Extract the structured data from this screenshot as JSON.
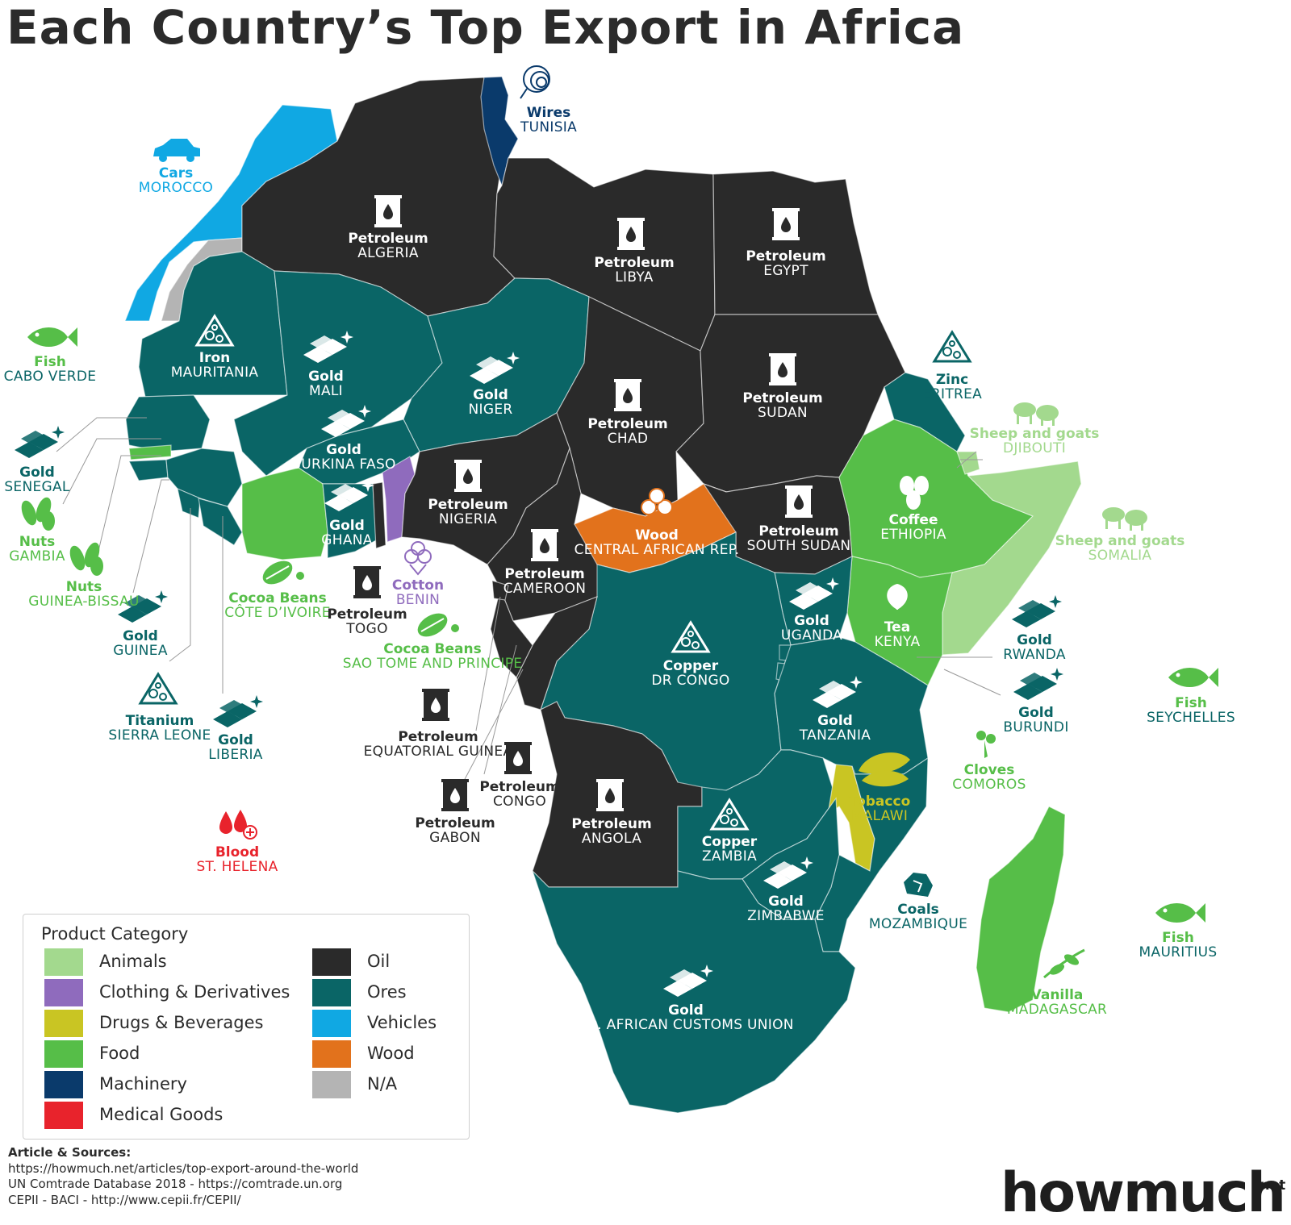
{
  "title": "Each Country’s Top Export in Africa",
  "colors": {
    "animals": "#a3d98e",
    "clothing": "#8f6bbd",
    "drugs": "#c9c523",
    "food": "#56be48",
    "machinery": "#0a3a6b",
    "medical": "#e8232c",
    "oil": "#2a2a2a",
    "ores": "#0a6566",
    "vehicles": "#10a8e3",
    "wood": "#e2721c",
    "na": "#b4b4b4"
  },
  "countries": [
    {
      "product": "Wires",
      "country": "TUNISIA",
      "category": "machinery",
      "icon": "wire-coil-icon"
    },
    {
      "product": "Cars",
      "country": "MOROCCO",
      "category": "vehicles",
      "icon": "car-icon"
    },
    {
      "product": "Petroleum",
      "country": "ALGERIA",
      "category": "oil",
      "icon": "oil-barrel-icon"
    },
    {
      "product": "Petroleum",
      "country": "LIBYA",
      "category": "oil",
      "icon": "oil-barrel-icon"
    },
    {
      "product": "Petroleum",
      "country": "EGYPT",
      "category": "oil",
      "icon": "oil-barrel-icon"
    },
    {
      "product": "Fish",
      "country": "CABO VERDE",
      "category": "food",
      "icon": "fish-icon"
    },
    {
      "product": "Iron",
      "country": "MAURITANIA",
      "category": "ores",
      "icon": "iron-ore-icon"
    },
    {
      "product": "Gold",
      "country": "MALI",
      "category": "ores",
      "icon": "gold-bars-icon"
    },
    {
      "product": "Gold",
      "country": "NIGER",
      "category": "ores",
      "icon": "gold-bars-icon"
    },
    {
      "product": "Petroleum",
      "country": "CHAD",
      "category": "oil",
      "icon": "oil-barrel-icon"
    },
    {
      "product": "Petroleum",
      "country": "SUDAN",
      "category": "oil",
      "icon": "oil-barrel-icon"
    },
    {
      "product": "Zinc",
      "country": "ERITREA",
      "category": "ores",
      "icon": "zinc-ore-icon"
    },
    {
      "product": "Sheep and goats",
      "country": "DJIBOUTI",
      "category": "animals",
      "icon": "sheep-goat-icon"
    },
    {
      "product": "Gold",
      "country": "SENEGAL",
      "category": "ores",
      "icon": "gold-bars-icon"
    },
    {
      "product": "Gold",
      "country": "BURKINA FASO",
      "category": "ores",
      "icon": "gold-bars-icon"
    },
    {
      "product": "Nuts",
      "country": "GAMBIA",
      "category": "food",
      "icon": "nuts-icon"
    },
    {
      "product": "Petroleum",
      "country": "NIGERIA",
      "category": "oil",
      "icon": "oil-barrel-icon"
    },
    {
      "product": "Gold",
      "country": "GHANA",
      "category": "ores",
      "icon": "gold-bars-icon"
    },
    {
      "product": "Wood",
      "country": "CENTRAL AFRICAN REP.",
      "category": "wood",
      "icon": "wood-logs-icon"
    },
    {
      "product": "Petroleum",
      "country": "SOUTH SUDAN",
      "category": "oil",
      "icon": "oil-barrel-icon"
    },
    {
      "product": "Coffee",
      "country": "ETHIOPIA",
      "category": "food",
      "icon": "coffee-beans-icon"
    },
    {
      "product": "Sheep and goats",
      "country": "SOMALIA",
      "category": "animals",
      "icon": "sheep-goat-icon"
    },
    {
      "product": "Cotton",
      "country": "BENIN",
      "category": "clothing",
      "icon": "cotton-icon"
    },
    {
      "product": "Petroleum",
      "country": "CAMEROON",
      "category": "oil",
      "icon": "oil-barrel-icon"
    },
    {
      "product": "Nuts",
      "country": "GUINEA-BISSAU",
      "category": "food",
      "icon": "nuts-icon"
    },
    {
      "product": "Cocoa Beans",
      "country": "CÔTE D’IVOIRE",
      "category": "food",
      "icon": "cocoa-icon"
    },
    {
      "product": "Petroleum",
      "country": "TOGO",
      "category": "oil",
      "icon": "oil-barrel-icon"
    },
    {
      "product": "Gold",
      "country": "UGANDA",
      "category": "ores",
      "icon": "gold-bars-icon"
    },
    {
      "product": "Tea",
      "country": "KENYA",
      "category": "food",
      "icon": "tea-leaf-icon"
    },
    {
      "product": "Gold",
      "country": "GUINEA",
      "category": "ores",
      "icon": "gold-bars-icon"
    },
    {
      "product": "Cocoa Beans",
      "country": "SAO TOME AND PRINCIPE",
      "category": "food",
      "icon": "cocoa-icon"
    },
    {
      "product": "Copper",
      "country": "DR CONGO",
      "category": "ores",
      "icon": "copper-ore-icon"
    },
    {
      "product": "Gold",
      "country": "RWANDA",
      "category": "ores",
      "icon": "gold-bars-icon"
    },
    {
      "product": "Titanium",
      "country": "SIERRA LEONE",
      "category": "ores",
      "icon": "titanium-ore-icon"
    },
    {
      "product": "Gold",
      "country": "LIBERIA",
      "category": "ores",
      "icon": "gold-bars-icon"
    },
    {
      "product": "Petroleum",
      "country": "EQUATORIAL GUINEA",
      "category": "oil",
      "icon": "oil-barrel-icon"
    },
    {
      "product": "Gold",
      "country": "TANZANIA",
      "category": "ores",
      "icon": "gold-bars-icon"
    },
    {
      "product": "Gold",
      "country": "BURUNDI",
      "category": "ores",
      "icon": "gold-bars-icon"
    },
    {
      "product": "Fish",
      "country": "SEYCHELLES",
      "category": "food",
      "icon": "fish-icon"
    },
    {
      "product": "Cloves",
      "country": "COMOROS",
      "category": "food",
      "icon": "cloves-icon"
    },
    {
      "product": "Petroleum",
      "country": "CONGO",
      "category": "oil",
      "icon": "oil-barrel-icon"
    },
    {
      "product": "Petroleum",
      "country": "ANGOLA",
      "category": "oil",
      "icon": "oil-barrel-icon"
    },
    {
      "product": "Tobacco",
      "country": "MALAWI",
      "category": "drugs",
      "icon": "tobacco-leaf-icon"
    },
    {
      "product": "Petroleum",
      "country": "GABON",
      "category": "oil",
      "icon": "oil-barrel-icon"
    },
    {
      "product": "Copper",
      "country": "ZAMBIA",
      "category": "ores",
      "icon": "copper-ore-icon"
    },
    {
      "product": "Blood",
      "country": "ST. HELENA",
      "category": "medical",
      "icon": "blood-drops-icon"
    },
    {
      "product": "Coals",
      "country": "MOZAMBIQUE",
      "category": "ores",
      "icon": "coal-icon"
    },
    {
      "product": "Gold",
      "country": "ZIMBABWE",
      "category": "ores",
      "icon": "gold-bars-icon"
    },
    {
      "product": "Fish",
      "country": "MAURITIUS",
      "category": "food",
      "icon": "fish-icon"
    },
    {
      "product": "Vanilla",
      "country": "MADAGASCAR",
      "category": "food",
      "icon": "vanilla-icon"
    },
    {
      "product": "Gold",
      "country": "SO. AFRICAN CUSTOMS UNION",
      "category": "ores",
      "icon": "gold-bars-icon"
    }
  ],
  "legend": {
    "title": "Product Category",
    "items": [
      {
        "key": "animals",
        "label": "Animals"
      },
      {
        "key": "clothing",
        "label": "Clothing & Derivatives"
      },
      {
        "key": "drugs",
        "label": "Drugs & Beverages"
      },
      {
        "key": "food",
        "label": "Food"
      },
      {
        "key": "machinery",
        "label": "Machinery"
      },
      {
        "key": "medical",
        "label": "Medical Goods"
      },
      {
        "key": "oil",
        "label": "Oil"
      },
      {
        "key": "ores",
        "label": "Ores"
      },
      {
        "key": "vehicles",
        "label": "Vehicles"
      },
      {
        "key": "wood",
        "label": "Wood"
      },
      {
        "key": "na",
        "label": "N/A"
      }
    ]
  },
  "sources": {
    "heading": "Article & Sources:",
    "lines": [
      "https://howmuch.net/articles/top-export-around-the-world",
      "UN Comtrade Database 2018 - https://comtrade.un.org",
      "CEPII - BACI - http://www.cepii.fr/CEPII/"
    ]
  },
  "brand": {
    "name_a": "how",
    "name_b": "much",
    "suffix": ".net"
  }
}
